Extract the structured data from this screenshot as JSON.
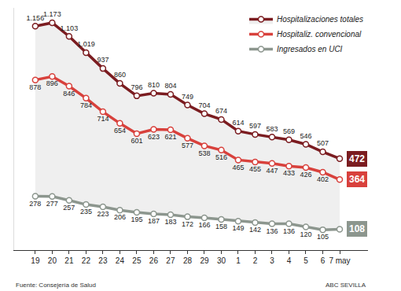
{
  "chart_data": {
    "type": "line",
    "categories": [
      "19",
      "20",
      "21",
      "22",
      "23",
      "24",
      "25",
      "26",
      "27",
      "28",
      "29",
      "30",
      "1",
      "2",
      "3",
      "4",
      "5",
      "6",
      "7 may"
    ],
    "series": [
      {
        "name": "Hospitalizaciones totales",
        "color": "#7b1c20",
        "values": [
          1156,
          1173,
          1103,
          1019,
          937,
          860,
          796,
          810,
          804,
          749,
          704,
          674,
          614,
          597,
          583,
          569,
          546,
          507,
          472
        ],
        "value_labels": [
          "1.156",
          "1.173",
          "1.103",
          "1.019",
          "937",
          "860",
          "796",
          "810",
          "804",
          "749",
          "704",
          "674",
          "614",
          "597",
          "583",
          "569",
          "546",
          "507",
          "472"
        ]
      },
      {
        "name": "Hospitaliz. convencional",
        "color": "#d8413c",
        "values": [
          878,
          896,
          846,
          784,
          714,
          654,
          601,
          623,
          621,
          577,
          538,
          516,
          465,
          455,
          447,
          433,
          426,
          402,
          364
        ]
      },
      {
        "name": "Ingresados en UCI",
        "color": "#8c968e",
        "values": [
          278,
          277,
          257,
          235,
          223,
          206,
          195,
          187,
          183,
          172,
          166,
          158,
          149,
          142,
          136,
          136,
          120,
          105,
          108
        ]
      }
    ],
    "ylim": [
      0,
      1250
    ],
    "yticks": [],
    "tick_labels": "x",
    "data_labels": true,
    "legend": "top-right",
    "marker": "circle",
    "line_style": "solid",
    "grid": false,
    "source": "Fuente: Consejería de Salud",
    "credit": "ABC SEVILLA"
  }
}
